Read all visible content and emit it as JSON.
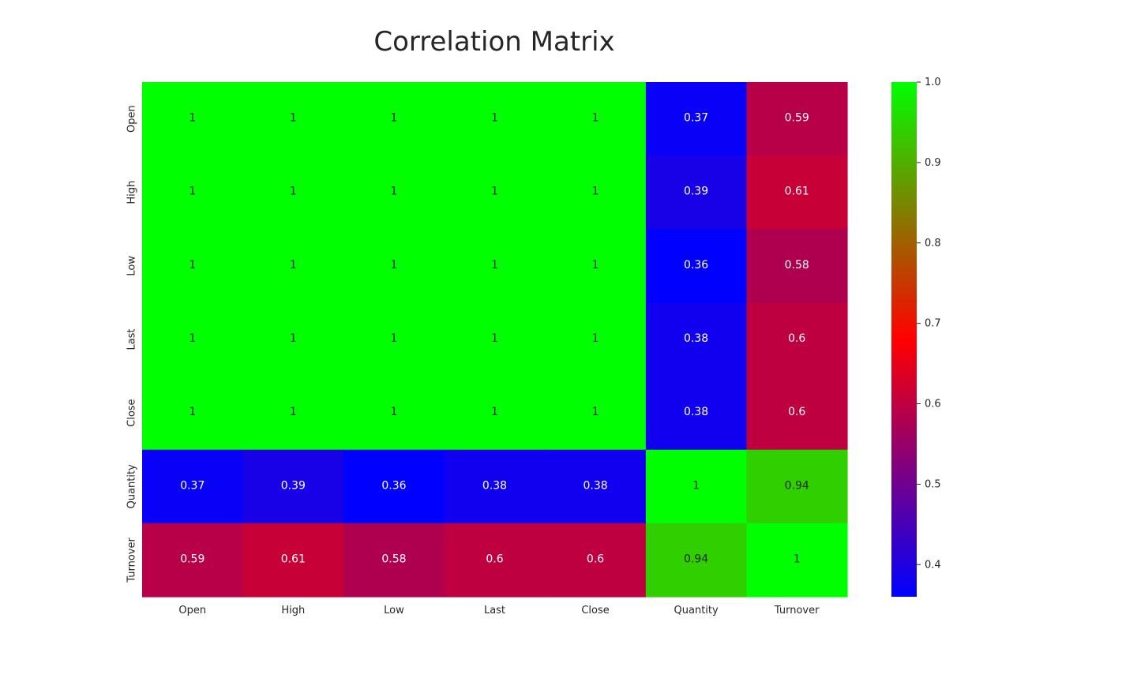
{
  "chart_data": {
    "type": "heatmap",
    "title": "Correlation Matrix",
    "xlabel": "",
    "ylabel": "",
    "x_categories": [
      "Open",
      "High",
      "Low",
      "Last",
      "Close",
      "Quantity",
      "Turnover"
    ],
    "y_categories": [
      "Open",
      "High",
      "Low",
      "Last",
      "Close",
      "Quantity",
      "Turnover"
    ],
    "values": [
      [
        1,
        1,
        1,
        1,
        1,
        0.37,
        0.59
      ],
      [
        1,
        1,
        1,
        1,
        1,
        0.39,
        0.61
      ],
      [
        1,
        1,
        1,
        1,
        1,
        0.36,
        0.58
      ],
      [
        1,
        1,
        1,
        1,
        1,
        0.38,
        0.6
      ],
      [
        1,
        1,
        1,
        1,
        1,
        0.38,
        0.6
      ],
      [
        0.37,
        0.39,
        0.36,
        0.38,
        0.38,
        1,
        0.94
      ],
      [
        0.59,
        0.61,
        0.58,
        0.6,
        0.6,
        0.94,
        1
      ]
    ],
    "annotations": [
      [
        "1",
        "1",
        "1",
        "1",
        "1",
        "0.37",
        "0.59"
      ],
      [
        "1",
        "1",
        "1",
        "1",
        "1",
        "0.39",
        "0.61"
      ],
      [
        "1",
        "1",
        "1",
        "1",
        "1",
        "0.36",
        "0.58"
      ],
      [
        "1",
        "1",
        "1",
        "1",
        "1",
        "0.38",
        "0.6"
      ],
      [
        "1",
        "1",
        "1",
        "1",
        "1",
        "0.38",
        "0.6"
      ],
      [
        "0.37",
        "0.39",
        "0.36",
        "0.38",
        "0.38",
        "1",
        "0.94"
      ],
      [
        "0.59",
        "0.61",
        "0.58",
        "0.6",
        "0.6",
        "0.94",
        "1"
      ]
    ],
    "colormap": {
      "colors": [
        "#0000ff",
        "#ff0000",
        "#00ff00"
      ],
      "vmin": 0.36,
      "vmax": 1.0
    },
    "colorbar": {
      "ticks": [
        0.4,
        0.5,
        0.6,
        0.7,
        0.8,
        0.9,
        1.0
      ],
      "tick_labels": [
        "0.4",
        "0.5",
        "0.6",
        "0.7",
        "0.8",
        "0.9",
        "1.0"
      ],
      "placement": "right"
    },
    "grid": false
  }
}
